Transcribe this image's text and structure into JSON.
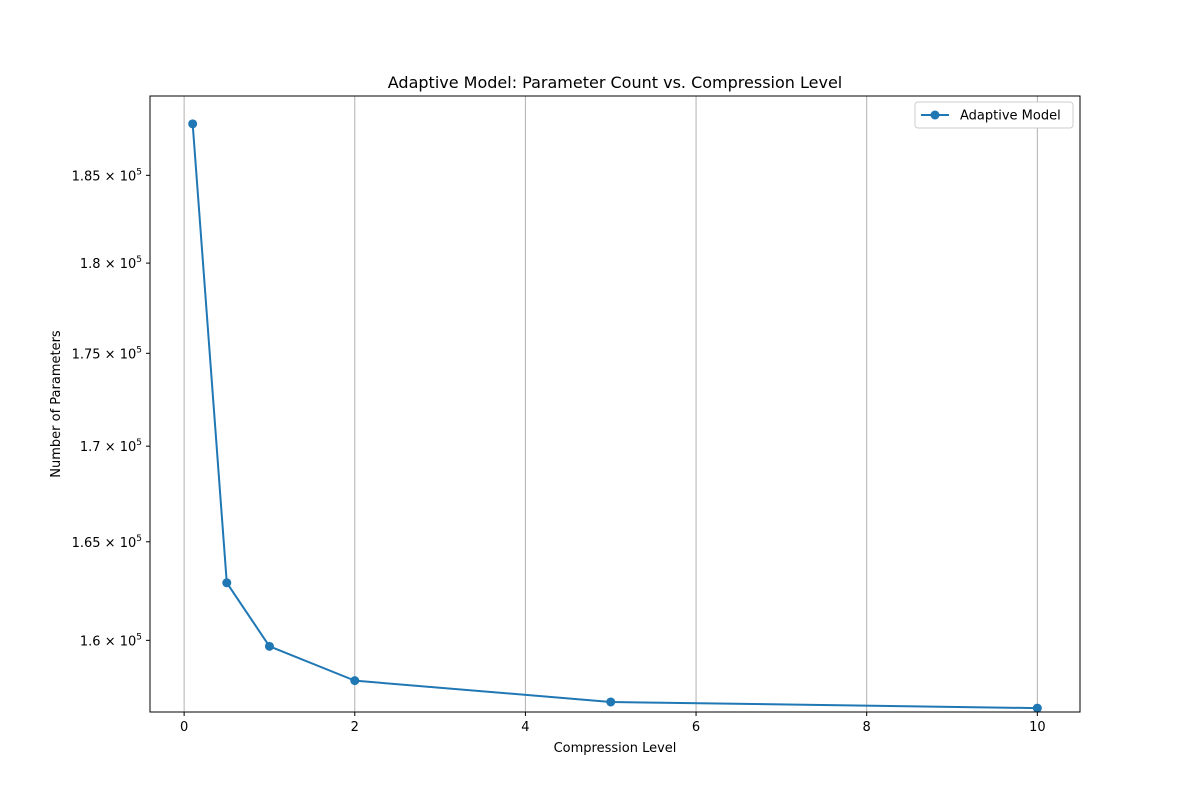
{
  "chart_data": {
    "type": "line",
    "title": "Adaptive Model: Parameter Count vs. Compression Level",
    "xlabel": "Compression Level",
    "ylabel": "Number of Parameters",
    "xlim": [
      -0.4,
      10.5
    ],
    "ylim": [
      156460,
      189640
    ],
    "y_scale": "log",
    "grid": "vertical lines at x ticks",
    "legend_position": "upper right",
    "x_ticks": [
      0,
      2,
      4,
      6,
      8,
      10
    ],
    "x_tick_labels": [
      "0",
      "2",
      "4",
      "6",
      "8",
      "10"
    ],
    "y_ticks": [
      160000,
      165000,
      170000,
      175000,
      180000,
      185000
    ],
    "y_tick_labels": [
      {
        "mantissa": "1.6",
        "exponent": "5"
      },
      {
        "mantissa": "1.65",
        "exponent": "5"
      },
      {
        "mantissa": "1.7",
        "exponent": "5"
      },
      {
        "mantissa": "1.75",
        "exponent": "5"
      },
      {
        "mantissa": "1.8",
        "exponent": "5"
      },
      {
        "mantissa": "1.85",
        "exponent": "5"
      }
    ],
    "series": [
      {
        "name": "Adaptive Model",
        "color": "#1f77b4",
        "marker": "circle",
        "x": [
          0.1,
          0.5,
          1,
          2,
          5,
          10
        ],
        "y": [
          188000,
          162900,
          159700,
          158000,
          156950,
          156650
        ]
      }
    ]
  }
}
